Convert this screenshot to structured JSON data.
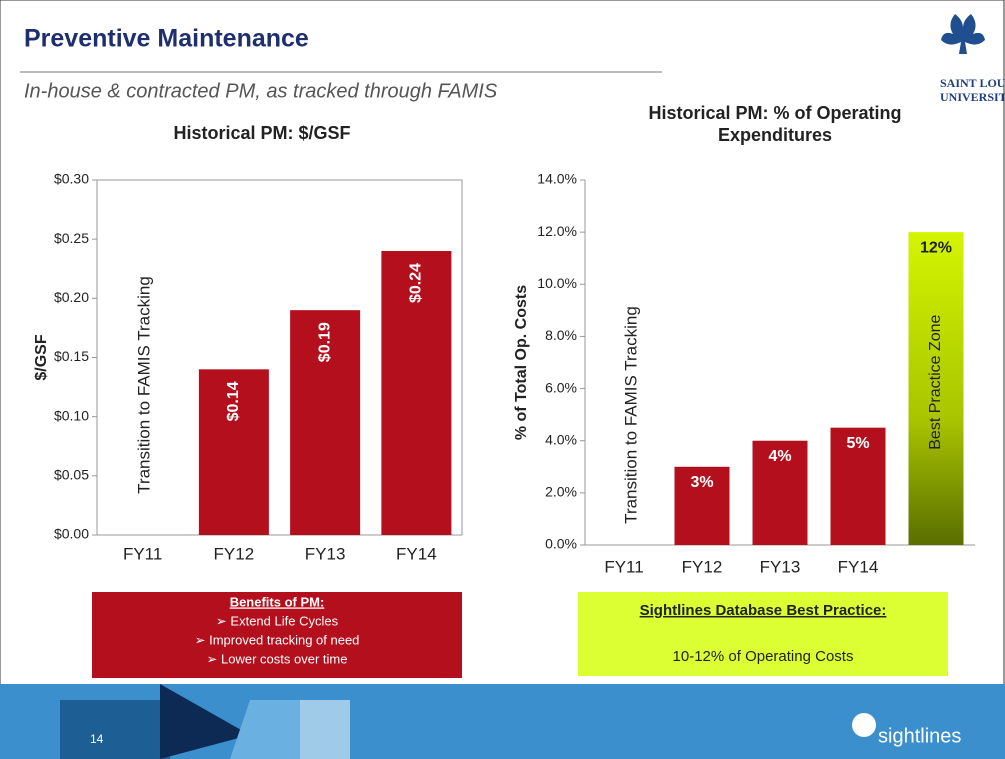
{
  "header": {
    "title": "Preventive Maintenance",
    "subtitle": "In-house & contracted PM, as tracked through FAMIS",
    "logo": [
      "SAINT LOUIS",
      "UNIVERSITY"
    ]
  },
  "chart_data": [
    {
      "type": "bar",
      "title": "Historical PM: $/GSF",
      "y_label": "$/GSF",
      "annotation": "Transition to FAMIS Tracking",
      "categories": [
        "FY11",
        "FY12",
        "FY13",
        "FY14"
      ],
      "values": [
        null,
        0.14,
        0.19,
        0.24
      ],
      "value_labels": [
        null,
        "$0.14",
        "$0.19",
        "$0.24"
      ],
      "color": "#b30f1c",
      "ylim": [
        0,
        0.3
      ],
      "yticks": [
        {
          "value": 0,
          "label": "$0.00"
        },
        {
          "value": 0.05,
          "label": "$0.05"
        },
        {
          "value": 0.1,
          "label": "$0.10"
        },
        {
          "value": 0.15,
          "label": "$0.15"
        },
        {
          "value": 0.2,
          "label": "$0.20"
        },
        {
          "value": 0.25,
          "label": "$0.25"
        },
        {
          "value": 0.3,
          "label": "$0.30"
        }
      ],
      "grid": false
    },
    {
      "type": "bar",
      "title": "Historical PM: % of Operating Expenditures",
      "y_label": "% of Total Op. Costs",
      "annotation": "Transition to FAMIS Tracking",
      "zone_label": "Best Practice Zone",
      "categories": [
        "FY11",
        "FY12",
        "FY13",
        "FY14",
        null
      ],
      "values": [
        null,
        3,
        4,
        4.5,
        12
      ],
      "value_labels": [
        null,
        "3%",
        "4%",
        "5%",
        "12%"
      ],
      "colors": [
        "#b30f1c",
        "#b30f1c",
        "#b30f1c",
        "#b30f1c",
        "#c8ee00"
      ],
      "ylim": [
        0,
        14
      ],
      "yticks": [
        {
          "value": 0,
          "label": "0.0%"
        },
        {
          "value": 2,
          "label": "2.0%"
        },
        {
          "value": 4,
          "label": "4.0%"
        },
        {
          "value": 6,
          "label": "6.0%"
        },
        {
          "value": 8,
          "label": "8.0%"
        },
        {
          "value": 10,
          "label": "10.0%"
        },
        {
          "value": 12,
          "label": "12.0%"
        },
        {
          "value": 14,
          "label": "14.0%"
        }
      ],
      "grid": false
    }
  ],
  "benefits": {
    "title": "Benefits of PM:",
    "items": [
      "➢ Extend Life Cycles",
      "➢ Improved tracking of need",
      "➢ Lower costs over time"
    ]
  },
  "best_practice": {
    "title": "Sightlines Database Best Practice:",
    "text": "10-12% of Operating Costs"
  },
  "footer": {
    "page": "14",
    "brand": "sightlines"
  }
}
